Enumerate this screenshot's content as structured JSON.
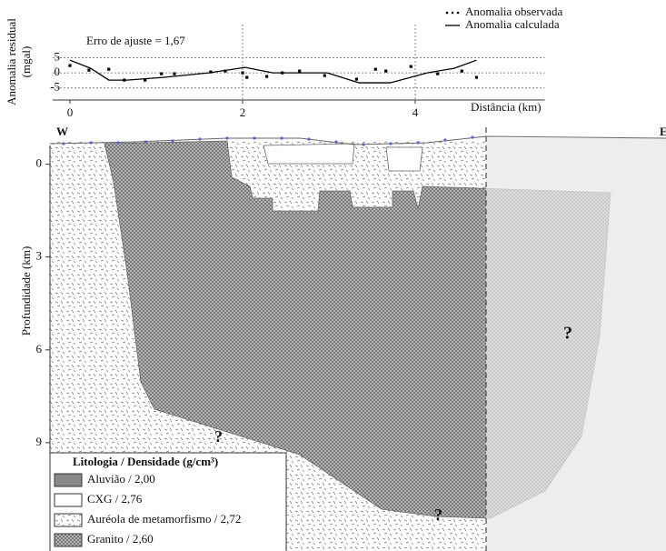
{
  "chart_data": [
    {
      "type": "line",
      "annotation": "Erro de ajuste = 1,67",
      "ylabel": [
        "Anomalia residual",
        "(mgal)"
      ],
      "xlabel": "Distância (km)",
      "xlim": [
        -0.2,
        5.5
      ],
      "xticks": [
        0,
        2,
        4
      ],
      "ylim": [
        -9,
        16
      ],
      "yticks": [
        5,
        0,
        -5
      ],
      "grid": true,
      "series": [
        {
          "name": "Anomalia observada",
          "color": "#000000",
          "style": "dots",
          "x": [
            0,
            0.22,
            0.45,
            0.63,
            0.87,
            1.06,
            1.21,
            1.63,
            1.8,
            2.0,
            2.05,
            2.28,
            2.46,
            2.66,
            2.95,
            3.32,
            3.54,
            3.66,
            3.95,
            4.26,
            4.54,
            4.71
          ],
          "values": [
            2.4,
            0.9,
            1.2,
            -2.4,
            -2.4,
            -0.3,
            -0.3,
            0.3,
            0.6,
            0,
            -1.5,
            -1.2,
            0,
            0.6,
            -0.9,
            -2.1,
            1.2,
            0.6,
            2.1,
            -0.3,
            0.6,
            -1.5
          ]
        },
        {
          "name": "Anomalia calculada",
          "color": "#000000",
          "style": "line",
          "x": [
            0,
            0.24,
            0.45,
            0.66,
            1.08,
            1.61,
            2.03,
            2.35,
            2.98,
            3.35,
            3.71,
            4.14,
            4.45,
            4.71
          ],
          "values": [
            4.2,
            1.5,
            -2.4,
            -2.4,
            -1.5,
            0,
            1.8,
            0,
            0,
            -3.3,
            -3.3,
            0,
            1.5,
            4.2
          ]
        }
      ]
    },
    {
      "type": "section",
      "ylabel": "Profundidade (km)",
      "ylim": [
        -0.9,
        12.5
      ],
      "yticks": [
        0,
        3,
        6,
        9
      ],
      "labels": [
        "W",
        "E"
      ],
      "annotations": [
        "?",
        "?",
        "?"
      ],
      "legend": {
        "title": "Litologia / Densidade (g/cm³)",
        "items": [
          "Aluvião / 2,00",
          "CXG / 2,76",
          "Auréola de metamorfismo  / 2,72",
          "Granito / 2,60"
        ]
      }
    }
  ]
}
